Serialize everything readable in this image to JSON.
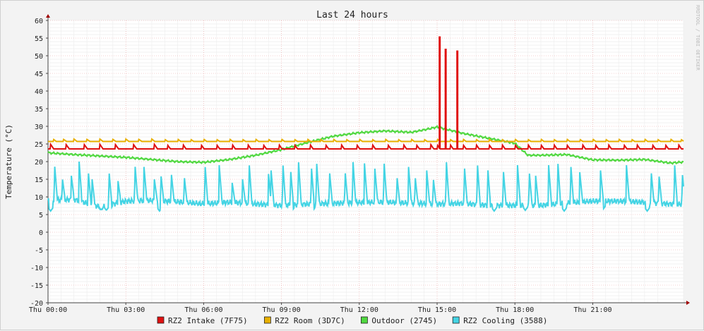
{
  "chart_data": {
    "type": "line",
    "title": "Last 24 hours",
    "ylabel": "Temperature (°C)",
    "xlabel": "",
    "watermark": "RRDTOOL / TOBI OETIKER",
    "ylim": [
      -20,
      60
    ],
    "y_ticks": [
      60,
      55,
      50,
      45,
      40,
      35,
      30,
      25,
      20,
      15,
      10,
      5,
      0,
      -5,
      -10,
      -15,
      -20
    ],
    "xlim_hours": [
      0,
      24.5
    ],
    "x_ticks": [
      {
        "hour": 0,
        "label": "Thu 00:00"
      },
      {
        "hour": 3,
        "label": "Thu 03:00"
      },
      {
        "hour": 6,
        "label": "Thu 06:00"
      },
      {
        "hour": 9,
        "label": "Thu 09:00"
      },
      {
        "hour": 12,
        "label": "Thu 12:00"
      },
      {
        "hour": 15,
        "label": "Thu 15:00"
      },
      {
        "hour": 18,
        "label": "Thu 18:00"
      },
      {
        "hour": 21,
        "label": "Thu 21:00"
      }
    ],
    "grid": true,
    "legend_position": "bottom",
    "series": [
      {
        "name": "RZ2 Intake (7F75)",
        "color": "#e01010",
        "base": 23.6,
        "bumps": [
          [
            0.1,
            1.3
          ],
          [
            0.7,
            1.2
          ],
          [
            1.4,
            1.2
          ],
          [
            2.0,
            1.3
          ],
          [
            2.6,
            1.2
          ],
          [
            3.3,
            1.2
          ],
          [
            4.1,
            1.3
          ],
          [
            4.6,
            1.2
          ],
          [
            5.2,
            1.3
          ],
          [
            5.9,
            1.2
          ],
          [
            6.5,
            1.2
          ],
          [
            7.1,
            1.3
          ],
          [
            7.7,
            1.3
          ],
          [
            8.3,
            1.2
          ],
          [
            8.9,
            1.3
          ],
          [
            9.5,
            1.2
          ],
          [
            10.1,
            1.3
          ],
          [
            10.7,
            1.2
          ],
          [
            11.3,
            1.3
          ],
          [
            11.9,
            1.2
          ],
          [
            12.5,
            1.3
          ],
          [
            13.1,
            1.2
          ],
          [
            13.7,
            1.3
          ],
          [
            14.2,
            1.2
          ],
          [
            14.75,
            1.3
          ],
          [
            15.0,
            1.2
          ],
          [
            15.5,
            1.3
          ],
          [
            16.0,
            1.2
          ],
          [
            16.5,
            1.3
          ],
          [
            17.0,
            1.2
          ],
          [
            17.5,
            1.3
          ],
          [
            18.0,
            1.2
          ],
          [
            18.5,
            1.3
          ],
          [
            19.0,
            1.2
          ],
          [
            19.5,
            1.3
          ],
          [
            20.0,
            1.2
          ],
          [
            20.6,
            1.3
          ],
          [
            21.1,
            1.2
          ],
          [
            21.6,
            1.3
          ],
          [
            22.2,
            1.2
          ],
          [
            22.7,
            1.3
          ],
          [
            23.3,
            1.2
          ],
          [
            23.8,
            1.2
          ],
          [
            24.3,
            1.3
          ]
        ],
        "spikes": [
          [
            15.1,
            55.5
          ],
          [
            15.33,
            52.0
          ],
          [
            15.78,
            51.5
          ]
        ]
      },
      {
        "name": "RZ2 Room (3D7C)",
        "color": "#e8b000",
        "base": 25.7,
        "bumps": [
          [
            0.2,
            0.7
          ],
          [
            0.6,
            0.6
          ],
          [
            1.0,
            0.7
          ],
          [
            1.5,
            0.6
          ],
          [
            2.0,
            0.7
          ],
          [
            2.5,
            0.6
          ],
          [
            3.0,
            0.7
          ],
          [
            3.5,
            0.6
          ],
          [
            4.0,
            0.7
          ],
          [
            4.5,
            0.6
          ],
          [
            5.0,
            0.7
          ],
          [
            5.5,
            0.6
          ],
          [
            6.0,
            0.7
          ],
          [
            6.5,
            0.6
          ],
          [
            7.0,
            0.7
          ],
          [
            7.5,
            0.6
          ],
          [
            8.0,
            0.7
          ],
          [
            8.5,
            0.6
          ],
          [
            9.0,
            0.7
          ],
          [
            9.5,
            0.6
          ],
          [
            10.0,
            0.7
          ],
          [
            10.5,
            0.6
          ],
          [
            11.0,
            0.7
          ],
          [
            11.5,
            0.6
          ],
          [
            12.0,
            0.7
          ],
          [
            12.5,
            0.6
          ],
          [
            13.0,
            0.7
          ],
          [
            13.5,
            0.6
          ],
          [
            14.0,
            0.7
          ],
          [
            14.5,
            0.6
          ],
          [
            15.0,
            0.7
          ],
          [
            15.5,
            0.6
          ],
          [
            16.0,
            0.7
          ],
          [
            16.5,
            0.6
          ],
          [
            17.0,
            0.7
          ],
          [
            17.5,
            0.6
          ],
          [
            18.0,
            0.7
          ],
          [
            18.5,
            0.6
          ],
          [
            19.0,
            0.7
          ],
          [
            19.5,
            0.6
          ],
          [
            20.0,
            0.7
          ],
          [
            20.5,
            0.6
          ],
          [
            21.0,
            0.7
          ],
          [
            21.5,
            0.6
          ],
          [
            22.0,
            0.7
          ],
          [
            22.5,
            0.6
          ],
          [
            23.0,
            0.7
          ],
          [
            23.5,
            0.6
          ],
          [
            24.0,
            0.7
          ],
          [
            24.4,
            0.6
          ]
        ]
      },
      {
        "name": "Outdoor (2745)",
        "color": "#50d840",
        "x": [
          0,
          1,
          2,
          3,
          4,
          5,
          6,
          7,
          8,
          9,
          10,
          11,
          12,
          13,
          14,
          14.5,
          15,
          16,
          17,
          18,
          18.5,
          19,
          20,
          21,
          22,
          23,
          24,
          24.5
        ],
        "y": [
          22.5,
          22.0,
          21.6,
          21.2,
          20.6,
          20.0,
          19.8,
          20.6,
          21.8,
          23.4,
          25.4,
          27.2,
          28.2,
          28.7,
          28.3,
          29.0,
          29.8,
          28.0,
          26.6,
          25.2,
          21.8,
          21.8,
          22.0,
          20.5,
          20.4,
          20.6,
          19.6,
          19.9
        ]
      },
      {
        "name": "RZ2 Cooling (3588)",
        "color": "#44d4e4",
        "x": [
          0,
          1,
          2,
          3,
          4,
          5,
          6,
          7,
          8,
          9,
          10,
          11,
          12,
          13,
          14,
          15,
          16,
          17,
          18,
          19,
          20,
          21,
          22,
          23,
          24,
          24.5
        ],
        "y": [
          9.0,
          9.3,
          7.2,
          8.8,
          9.0,
          8.6,
          8.0,
          8.5,
          8.0,
          7.6,
          8.0,
          8.2,
          8.4,
          8.5,
          8.2,
          8.0,
          8.2,
          7.6,
          7.6,
          7.6,
          8.2,
          8.8,
          8.8,
          8.5,
          8.0,
          8.0
        ],
        "peaks": [
          [
            0.25,
            19.5
          ],
          [
            0.55,
            15.5
          ],
          [
            0.9,
            16.0
          ],
          [
            1.2,
            20.0
          ],
          [
            1.55,
            17.5
          ],
          [
            1.7,
            15.0
          ],
          [
            2.35,
            17.5
          ],
          [
            2.7,
            14.5
          ],
          [
            3.35,
            19.5
          ],
          [
            3.7,
            18.5
          ],
          [
            4.1,
            15.0
          ],
          [
            4.35,
            16.5
          ],
          [
            4.75,
            17.0
          ],
          [
            5.25,
            16.0
          ],
          [
            6.05,
            19.5
          ],
          [
            6.6,
            19.0
          ],
          [
            7.1,
            14.0
          ],
          [
            7.5,
            15.0
          ],
          [
            7.75,
            20.0
          ],
          [
            8.5,
            16.5
          ],
          [
            8.6,
            17.5
          ],
          [
            9.05,
            20.0
          ],
          [
            9.35,
            18.0
          ],
          [
            9.65,
            21.0
          ],
          [
            10.15,
            19.0
          ],
          [
            10.35,
            20.5
          ],
          [
            10.85,
            17.5
          ],
          [
            11.45,
            17.5
          ],
          [
            11.75,
            21.0
          ],
          [
            12.2,
            19.5
          ],
          [
            12.6,
            18.0
          ],
          [
            12.95,
            20.5
          ],
          [
            13.45,
            16.0
          ],
          [
            13.9,
            18.5
          ],
          [
            14.15,
            16.0
          ],
          [
            14.6,
            17.5
          ],
          [
            14.85,
            15.5
          ],
          [
            15.35,
            21.0
          ],
          [
            16.05,
            19.0
          ],
          [
            16.55,
            20.0
          ],
          [
            16.95,
            18.5
          ],
          [
            17.55,
            18.0
          ],
          [
            18.1,
            19.0
          ],
          [
            18.55,
            17.5
          ],
          [
            18.8,
            16.0
          ],
          [
            19.3,
            19.0
          ],
          [
            19.65,
            20.5
          ],
          [
            20.15,
            19.5
          ],
          [
            20.5,
            17.0
          ],
          [
            21.3,
            17.5
          ],
          [
            22.3,
            19.0
          ],
          [
            23.25,
            17.5
          ],
          [
            23.55,
            16.5
          ],
          [
            24.15,
            20.0
          ],
          [
            24.45,
            17.0
          ]
        ],
        "troughs": [
          [
            2.05,
            6.3
          ],
          [
            2.25,
            6.2
          ],
          [
            2.4,
            6.5
          ],
          [
            0.1,
            6.0
          ],
          [
            4.3,
            6.0
          ],
          [
            9.4,
            6.0
          ],
          [
            10.2,
            6.0
          ],
          [
            17.2,
            6.0
          ],
          [
            18.4,
            6.2
          ],
          [
            19.9,
            6.0
          ],
          [
            21.4,
            6.5
          ],
          [
            23.1,
            6.0
          ]
        ]
      }
    ]
  }
}
